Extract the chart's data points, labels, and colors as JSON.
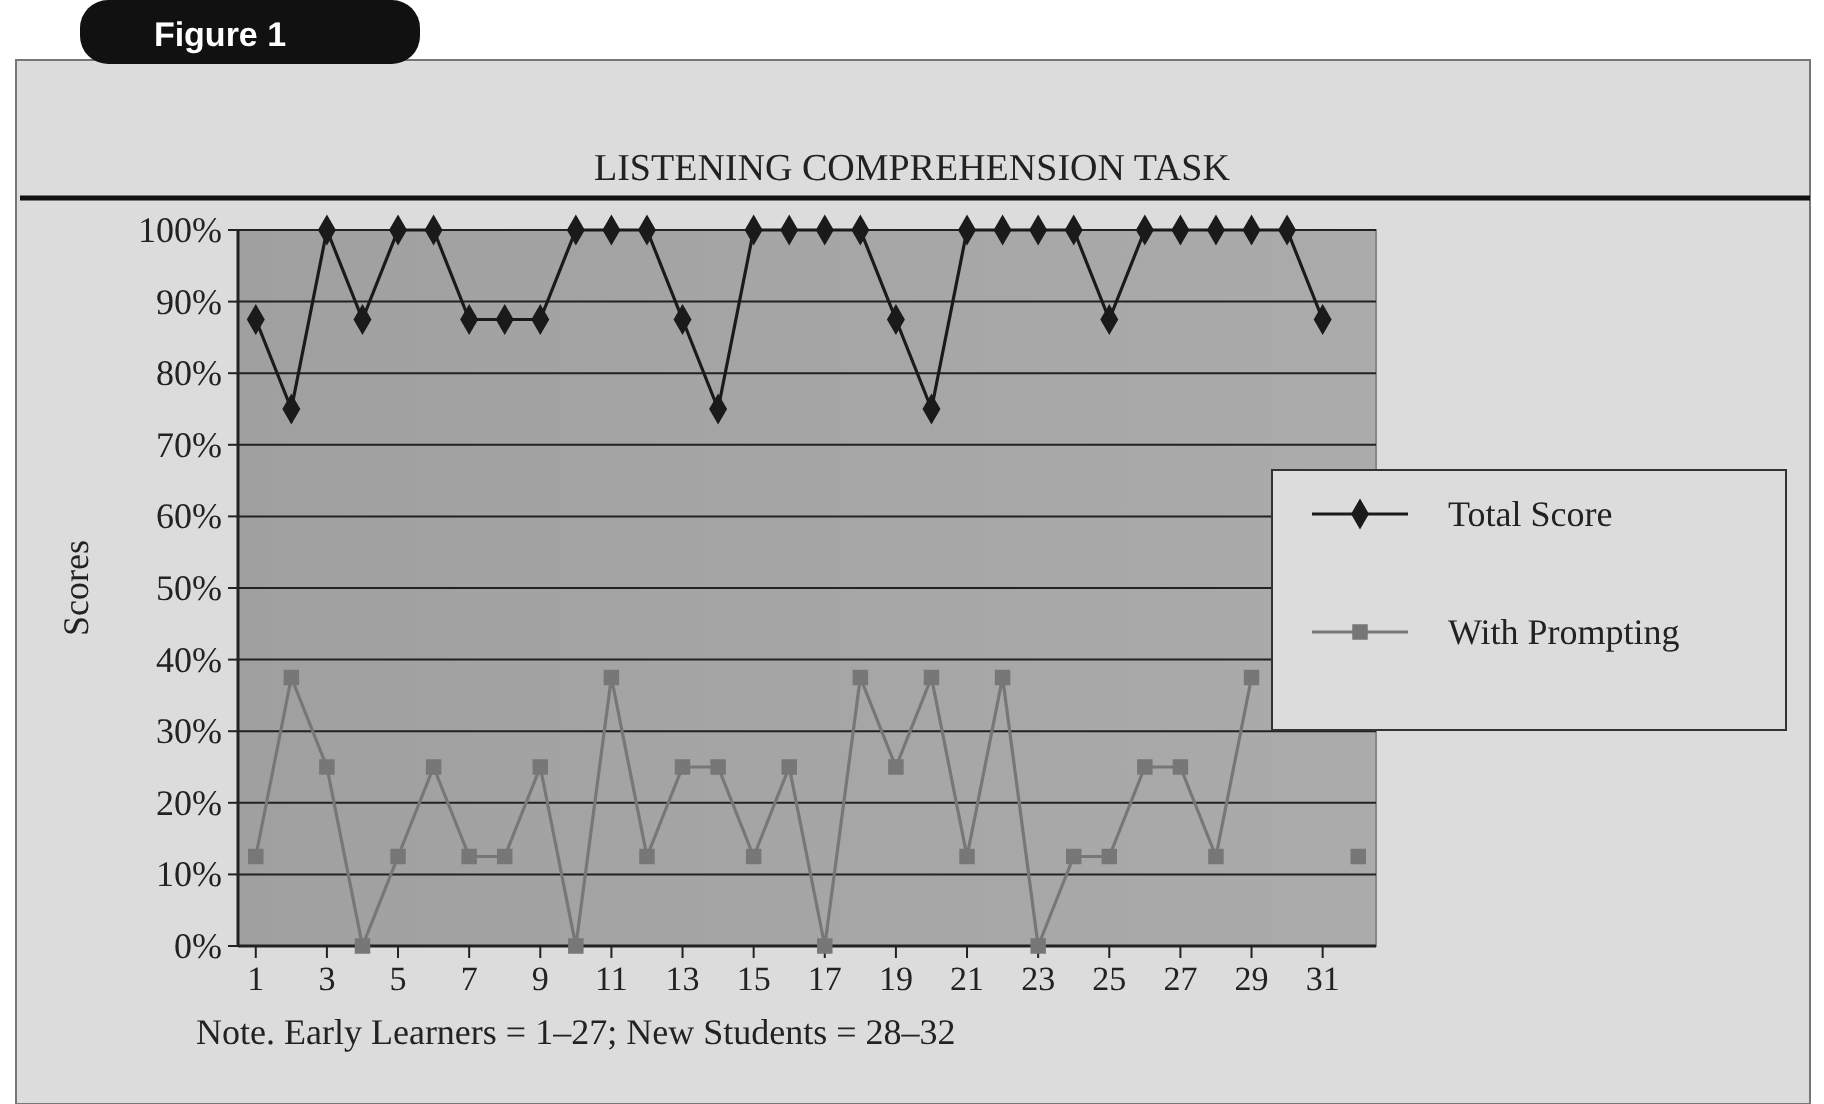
{
  "chart_data": {
    "type": "line",
    "title": "LISTENING COMPREHENSION TASK",
    "ylabel": "Scores",
    "annotations": [
      "Figure 1",
      "Note. Early Learners = 1–27; New Students = 28–32"
    ],
    "x": [
      1,
      2,
      3,
      4,
      5,
      6,
      7,
      8,
      9,
      10,
      11,
      12,
      13,
      14,
      15,
      16,
      17,
      18,
      19,
      20,
      21,
      22,
      23,
      24,
      25,
      26,
      27,
      28,
      29,
      30,
      31,
      32
    ],
    "xlim": [
      0.5,
      32.5
    ],
    "xticks": [
      1,
      3,
      5,
      7,
      9,
      11,
      13,
      15,
      17,
      19,
      21,
      23,
      25,
      27,
      29,
      31
    ],
    "ylim": [
      0,
      100
    ],
    "yticks": [
      {
        "value": 0,
        "label": "0%"
      },
      {
        "value": 10,
        "label": "10%"
      },
      {
        "value": 20,
        "label": "20%"
      },
      {
        "value": 30,
        "label": "30%"
      },
      {
        "value": 40,
        "label": "40%"
      },
      {
        "value": 50,
        "label": "50%"
      },
      {
        "value": 60,
        "label": "60%"
      },
      {
        "value": 70,
        "label": "70%"
      },
      {
        "value": 80,
        "label": "80%"
      },
      {
        "value": 90,
        "label": "90%"
      },
      {
        "value": 100,
        "label": "100%"
      }
    ],
    "grid": "y",
    "legend": "right",
    "series": [
      {
        "name": "Total Score",
        "color": "#1a1a1a",
        "marker": "diamond",
        "values": [
          87.5,
          75,
          100,
          87.5,
          100,
          100,
          87.5,
          87.5,
          87.5,
          100,
          100,
          100,
          87.5,
          75,
          100,
          100,
          100,
          100,
          87.5,
          75,
          100,
          100,
          100,
          100,
          87.5,
          100,
          100,
          100,
          100,
          100,
          87.5,
          null
        ]
      },
      {
        "name": "With Prompting",
        "color": "#777777",
        "marker": "square",
        "values": [
          12.5,
          37.5,
          25,
          0,
          12.5,
          25,
          12.5,
          12.5,
          25,
          0,
          37.5,
          12.5,
          25,
          25,
          12.5,
          25,
          0,
          37.5,
          25,
          37.5,
          12.5,
          37.5,
          0,
          12.5,
          12.5,
          25,
          25,
          12.5,
          37.5,
          null,
          null,
          12.5
        ]
      }
    ]
  }
}
